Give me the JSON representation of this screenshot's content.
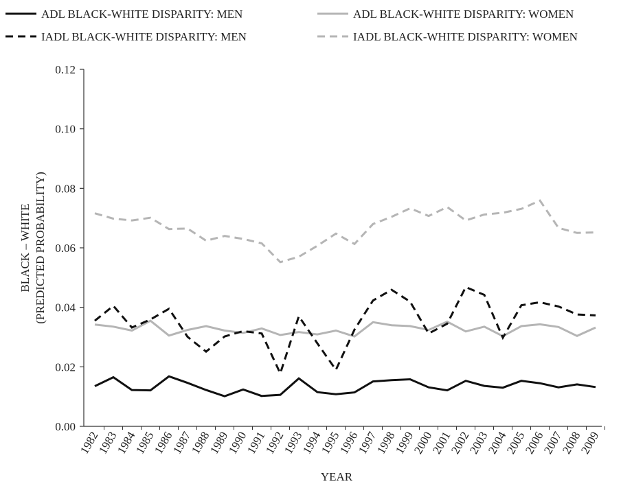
{
  "chart_data": {
    "type": "line",
    "title": "",
    "xlabel": "YEAR",
    "ylabel_lines": [
      "BLACK – WHITE",
      "(PREDICTED PROBABILITY)"
    ],
    "ylim": [
      0,
      0.12
    ],
    "yticks": [
      "0.00",
      "0.02",
      "0.04",
      "0.06",
      "0.08",
      "0.10",
      "0.12"
    ],
    "grid": false,
    "legend_position": "top",
    "categories": [
      "1982",
      "1983",
      "1984",
      "1985",
      "1986",
      "1987",
      "1988",
      "1989",
      "1990",
      "1991",
      "1992",
      "1993",
      "1994",
      "1995",
      "1996",
      "1997",
      "1998",
      "1999",
      "2000",
      "2001",
      "2002",
      "2003",
      "2004",
      "2005",
      "2006",
      "2007",
      "2008",
      "2009"
    ],
    "series": [
      {
        "name": "ADL BLACK-WHITE DISPARITY: MEN",
        "color": "#111111",
        "dash": "solid",
        "values": [
          0.0135,
          0.0165,
          0.0122,
          0.0121,
          0.0168,
          0.0146,
          0.0122,
          0.0101,
          0.0124,
          0.0102,
          0.0106,
          0.0161,
          0.0115,
          0.0108,
          0.0114,
          0.0151,
          0.0155,
          0.0158,
          0.0131,
          0.0121,
          0.0153,
          0.0136,
          0.013,
          0.0153,
          0.0145,
          0.0131,
          0.0141,
          0.0132
        ]
      },
      {
        "name": "ADL BLACK-WHITE DISPARITY: WOMEN",
        "color": "#b5b5b5",
        "dash": "solid",
        "values": [
          0.0342,
          0.0335,
          0.0322,
          0.0355,
          0.0305,
          0.0324,
          0.0337,
          0.0322,
          0.0314,
          0.0329,
          0.0307,
          0.0317,
          0.0309,
          0.0322,
          0.0302,
          0.035,
          0.034,
          0.0337,
          0.0324,
          0.0352,
          0.0319,
          0.0335,
          0.0303,
          0.0337,
          0.0343,
          0.0334,
          0.0304,
          0.0332
        ]
      },
      {
        "name": "IADL BLACK-WHITE DISPARITY: MEN",
        "color": "#111111",
        "dash": "dashed",
        "values": [
          0.0355,
          0.0405,
          0.0332,
          0.0359,
          0.0395,
          0.0301,
          0.0251,
          0.0302,
          0.032,
          0.0312,
          0.0178,
          0.037,
          0.0279,
          0.019,
          0.0325,
          0.0423,
          0.0459,
          0.0419,
          0.0312,
          0.0345,
          0.0468,
          0.0442,
          0.0298,
          0.0407,
          0.0417,
          0.0403,
          0.0376,
          0.0373
        ]
      },
      {
        "name": "IADL BLACK-WHITE DISPARITY: WOMEN",
        "color": "#b5b5b5",
        "dash": "dashed",
        "values": [
          0.0716,
          0.0698,
          0.0692,
          0.0701,
          0.0663,
          0.0665,
          0.0624,
          0.064,
          0.063,
          0.0615,
          0.0552,
          0.057,
          0.0607,
          0.0648,
          0.0613,
          0.068,
          0.0704,
          0.0733,
          0.0707,
          0.0737,
          0.0692,
          0.0712,
          0.0718,
          0.0731,
          0.0759,
          0.0667,
          0.065,
          0.0652
        ]
      }
    ]
  }
}
